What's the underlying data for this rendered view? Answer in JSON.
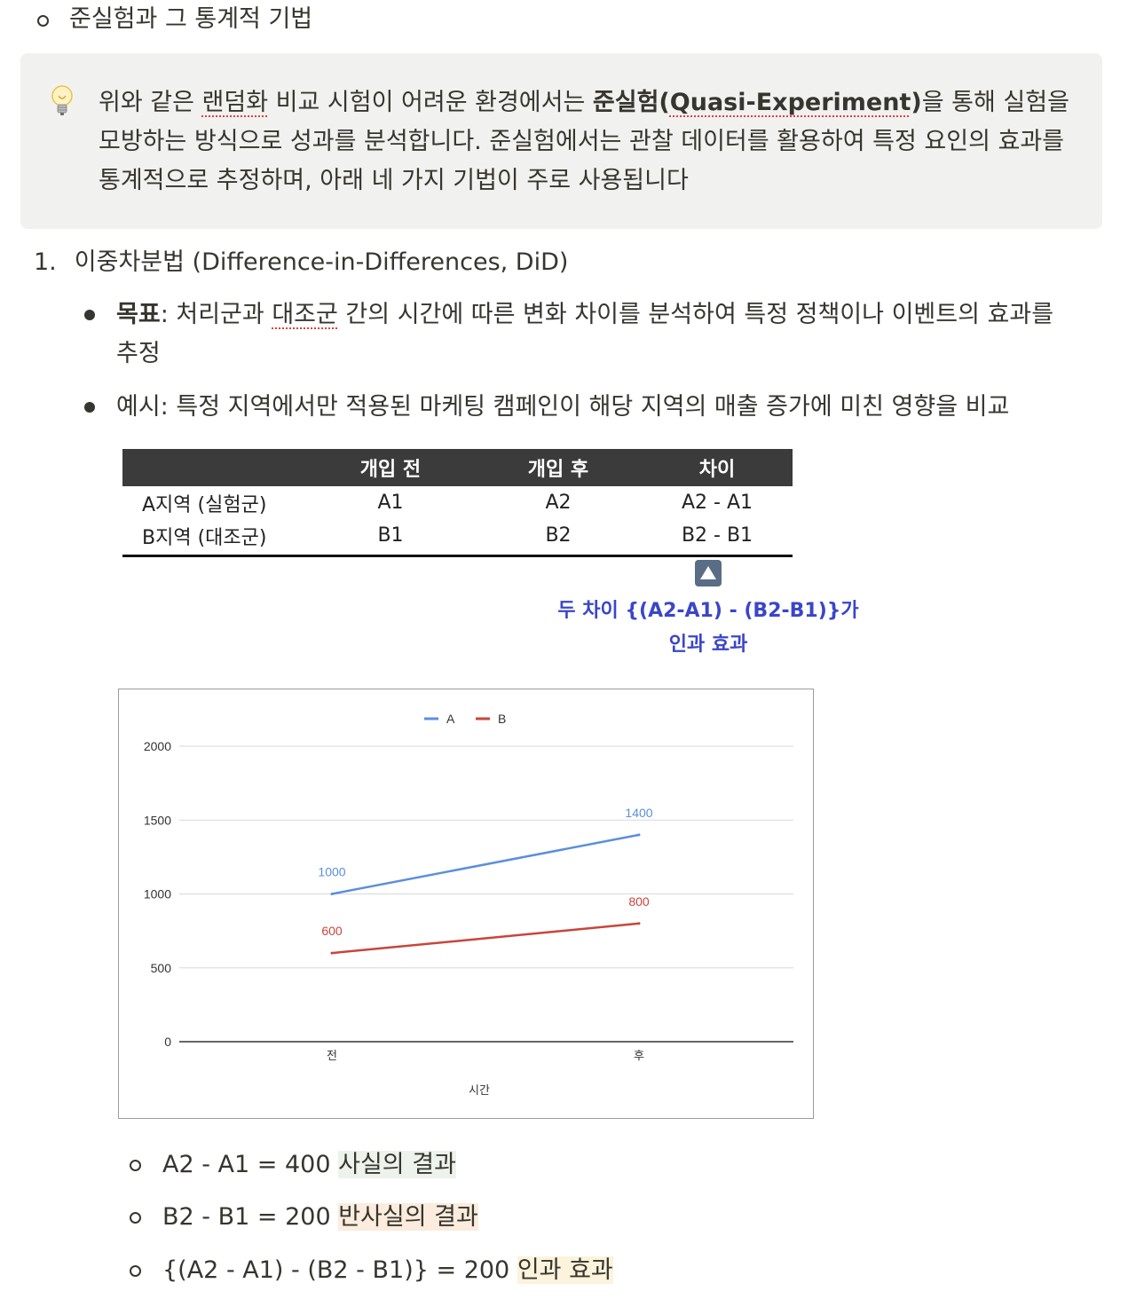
{
  "top_item": {
    "text": "준실험과 그 통계적 기법"
  },
  "callout": {
    "icon": "lightbulb-icon",
    "part1": "위와 같은 ",
    "part2_underlined": "랜덤화",
    "part3": " 비교 시험이 어려운 환경에서는 ",
    "part4_bold": "준실험(",
    "part5_bold_underlined": "Quasi-Experiment",
    "part6_bold": ")",
    "part7": "을 통해 실험을 모방하는 방식으로 성과를 분석합니다. 준실험에서는 관찰 데이터를 활용하여 특정 요인의 효과를 통계적으로 추정하며, 아래 네 가지 기법이 주로 사용됩니다"
  },
  "numbered": {
    "number": "1.",
    "text": "이중차분법 (Difference-in-Differences, DiD)"
  },
  "bullets": {
    "goal_label": "목표",
    "goal_text_a": ": 처리군과 ",
    "goal_text_underlined": "대조군",
    "goal_text_b": " 간의 시간에 따른 변화 차이를 분석하여 특정 정책이나 이벤트의 효과를",
    "goal_text_c": "추정",
    "example_text": "예시: 특정 지역에서만 적용된 마케팅 캠페인이 해당 지역의 매출 증가에 미친 영향을 비교"
  },
  "did_table": {
    "headers": [
      "",
      "개입 전",
      "개입 후",
      "차이"
    ],
    "rows": [
      [
        "A지역 (실험군)",
        "A1",
        "A2",
        "A2 - A1"
      ],
      [
        "B지역 (대조군)",
        "B1",
        "B2",
        "B2 - B1"
      ]
    ],
    "note_line1": "두 차이 {(A2-A1) - (B2-B1)}가",
    "note_line2": "인과 효과",
    "arrow_icon": "up-triangle-icon",
    "note_color": "#3a46c8"
  },
  "chart_data": {
    "type": "line",
    "categories": [
      "전",
      "후"
    ],
    "series": [
      {
        "name": "A",
        "values": [
          1000,
          1400
        ],
        "color": "#5b8fdc"
      },
      {
        "name": "B",
        "values": [
          600,
          800
        ],
        "color": "#c8453b"
      }
    ],
    "xlabel": "시간",
    "ylabel": "",
    "ylim": [
      0,
      2000
    ],
    "yticks": [
      0,
      500,
      1000,
      1500,
      2000
    ],
    "grid": true,
    "legend": "top-center"
  },
  "sub_results": [
    {
      "expr": "A2 - A1 = 400 ",
      "label": "사실의 결과",
      "highlight": "#edf3ec"
    },
    {
      "expr": "B2 - B1 = 200 ",
      "label": "반사실의 결과",
      "highlight": "#fbecdd"
    },
    {
      "expr": "{(A2 - A1) - (B2 - B1)} = 200 ",
      "label": "인과 효과",
      "highlight": "#fbf3db"
    }
  ]
}
